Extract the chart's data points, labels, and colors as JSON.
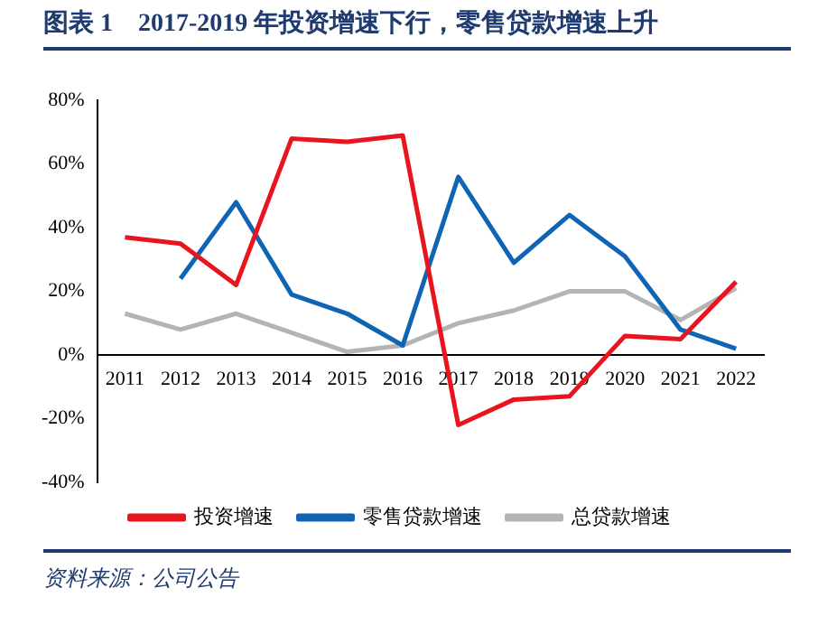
{
  "chart_data": {
    "type": "line",
    "title": "图表 1　2017-2019 年投资增速下行，零售贷款增速上升",
    "categories": [
      "2011",
      "2012",
      "2013",
      "2014",
      "2015",
      "2016",
      "2017",
      "2018",
      "2019",
      "2020",
      "2021",
      "2022"
    ],
    "series": [
      {
        "name": "投资增速",
        "color": "#e8141e",
        "values": [
          37,
          35,
          22,
          68,
          67,
          69,
          -22,
          -14,
          -13,
          6,
          5,
          23
        ]
      },
      {
        "name": "零售贷款增速",
        "color": "#0f64b4",
        "values": [
          null,
          24,
          48,
          19,
          13,
          3,
          56,
          29,
          44,
          31,
          8,
          2
        ]
      },
      {
        "name": "总贷款增速",
        "color": "#b4b4b4",
        "values": [
          13,
          8,
          13,
          7,
          1,
          3,
          10,
          14,
          20,
          20,
          11,
          21
        ]
      }
    ],
    "ylim": [
      -40,
      80
    ],
    "yticks": [
      {
        "value": -40,
        "label": "-40%"
      },
      {
        "value": -20,
        "label": "-20%"
      },
      {
        "value": 0,
        "label": "0%"
      },
      {
        "value": 20,
        "label": "20%"
      },
      {
        "value": 40,
        "label": "40%"
      },
      {
        "value": 60,
        "label": "60%"
      },
      {
        "value": 80,
        "label": "80%"
      }
    ],
    "grid": false,
    "legend": "bottom",
    "marker": "none",
    "line_style": "solid",
    "annotations": [
      "资料来源：公司公告"
    ]
  }
}
